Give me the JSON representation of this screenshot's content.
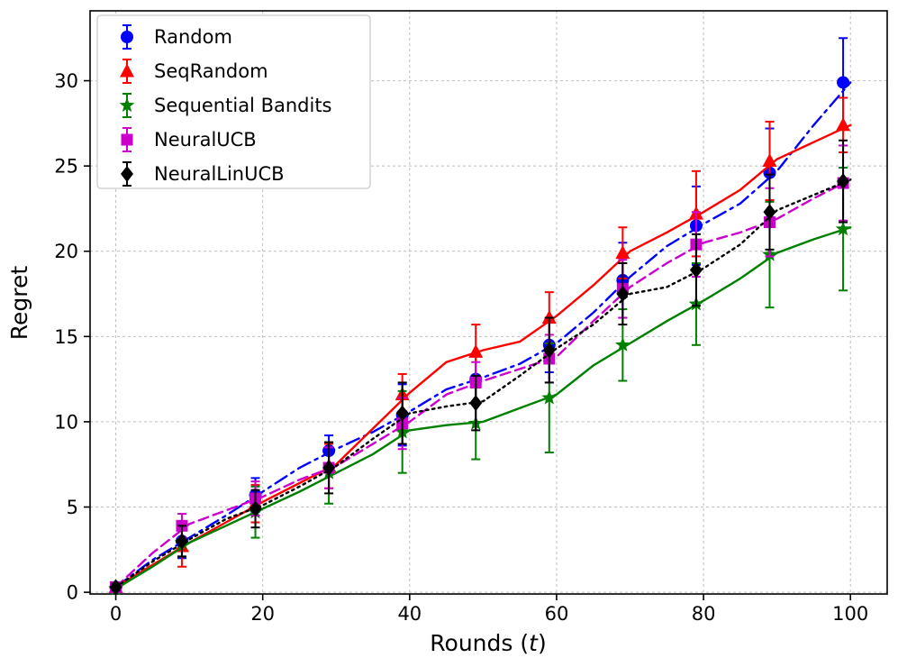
{
  "figure": {
    "background": "#ffffff",
    "plot_border_color": "#000000",
    "grid_color": "#bdbdbd",
    "legend_border_color": "#cccccc",
    "legend_background": "#ffffff"
  },
  "chart_data": {
    "type": "line",
    "title": "",
    "ylabel": "Regret",
    "xlabel_parts": [
      {
        "text": "Rounds (",
        "style": "normal"
      },
      {
        "text": "t",
        "style": "italic"
      },
      {
        "text": ")",
        "style": "normal"
      }
    ],
    "xlim": [
      -3.5,
      105
    ],
    "ylim": [
      -0.1,
      34.1
    ],
    "xticks": [
      0,
      20,
      40,
      60,
      80,
      100
    ],
    "yticks": [
      0,
      5,
      10,
      15,
      20,
      25,
      30
    ],
    "grid": true,
    "legend_position": "upper-left",
    "line_x": [
      0,
      5,
      10,
      15,
      20,
      25,
      30,
      35,
      40,
      45,
      50,
      55,
      60,
      65,
      70,
      75,
      80,
      85,
      90,
      95,
      100
    ],
    "marker_x": [
      0,
      9,
      19,
      29,
      39,
      49,
      59,
      69,
      79,
      89,
      99
    ],
    "series": [
      {
        "name": "Random",
        "color": "#0000ff",
        "linestyle": "dashdot",
        "marker": "circle",
        "line_y": [
          0.3,
          1.9,
          3.2,
          4.5,
          5.9,
          7.3,
          8.4,
          9.4,
          10.6,
          11.9,
          12.6,
          13.4,
          14.6,
          16.4,
          18.5,
          20.3,
          21.6,
          22.8,
          24.7,
          27.4,
          29.9
        ],
        "marker_y": [
          0.3,
          3.0,
          5.7,
          8.3,
          10.4,
          12.5,
          14.5,
          18.3,
          21.5,
          24.6,
          29.9
        ],
        "yerr": [
          0.2,
          1.0,
          1.0,
          0.9,
          1.8,
          1.4,
          1.6,
          2.2,
          2.3,
          2.6,
          2.6
        ]
      },
      {
        "name": "SeqRandom",
        "color": "#ff0000",
        "linestyle": "solid",
        "marker": "triangle-up",
        "line_y": [
          0.3,
          1.6,
          2.9,
          4.1,
          5.3,
          6.4,
          7.5,
          9.6,
          11.7,
          13.5,
          14.2,
          14.7,
          16.2,
          18.0,
          20.0,
          21.1,
          22.3,
          23.6,
          25.4,
          26.4,
          27.4
        ],
        "marker_y": [
          0.3,
          2.7,
          5.2,
          7.4,
          11.6,
          14.1,
          16.1,
          19.9,
          22.2,
          25.3,
          27.4
        ],
        "yerr": [
          0.2,
          1.2,
          1.1,
          1.3,
          1.2,
          1.6,
          1.5,
          1.5,
          2.5,
          2.3,
          1.6
        ]
      },
      {
        "name": "Sequential Bandits",
        "color": "#008000",
        "linestyle": "solid",
        "marker": "star",
        "line_y": [
          0.2,
          1.5,
          2.9,
          3.9,
          4.9,
          5.9,
          7.0,
          8.1,
          9.5,
          9.8,
          10.0,
          10.8,
          11.6,
          13.3,
          14.6,
          15.9,
          17.1,
          18.4,
          19.9,
          20.7,
          21.4
        ],
        "marker_y": [
          0.2,
          2.9,
          4.7,
          7.0,
          9.4,
          9.9,
          11.4,
          14.5,
          16.9,
          19.8,
          21.3
        ],
        "yerr": [
          0.1,
          0.8,
          1.5,
          1.8,
          2.4,
          2.1,
          3.2,
          2.1,
          2.4,
          3.1,
          3.6
        ]
      },
      {
        "name": "NeuralUCB",
        "color": "#cc00cc",
        "linestyle": "dashed",
        "marker": "square",
        "line_y": [
          0.3,
          2.3,
          4.0,
          4.8,
          5.6,
          6.6,
          7.4,
          8.7,
          10.0,
          11.6,
          12.4,
          13.1,
          13.8,
          15.9,
          17.9,
          19.3,
          20.5,
          21.1,
          21.9,
          23.1,
          24.2
        ],
        "marker_y": [
          0.3,
          3.9,
          5.5,
          7.3,
          9.9,
          12.3,
          13.7,
          17.8,
          20.4,
          21.7,
          24.0
        ],
        "yerr": [
          0.2,
          0.7,
          1.0,
          1.2,
          1.5,
          1.2,
          1.4,
          1.7,
          1.9,
          2.0,
          2.2
        ]
      },
      {
        "name": "NeuralLinUCB",
        "color": "#000000",
        "linestyle": "dotted",
        "marker": "diamond",
        "line_y": [
          0.3,
          1.8,
          3.1,
          4.3,
          5.1,
          6.2,
          7.4,
          9.0,
          10.5,
          10.9,
          11.2,
          12.7,
          14.3,
          15.7,
          17.5,
          17.9,
          19.0,
          20.4,
          22.4,
          23.3,
          24.2
        ],
        "marker_y": [
          0.3,
          3.0,
          4.9,
          7.3,
          10.5,
          11.1,
          14.2,
          17.5,
          18.9,
          22.3,
          24.1
        ],
        "yerr": [
          0.2,
          0.9,
          1.1,
          1.5,
          1.8,
          1.6,
          1.9,
          1.8,
          2.1,
          2.2,
          2.4
        ]
      }
    ]
  }
}
